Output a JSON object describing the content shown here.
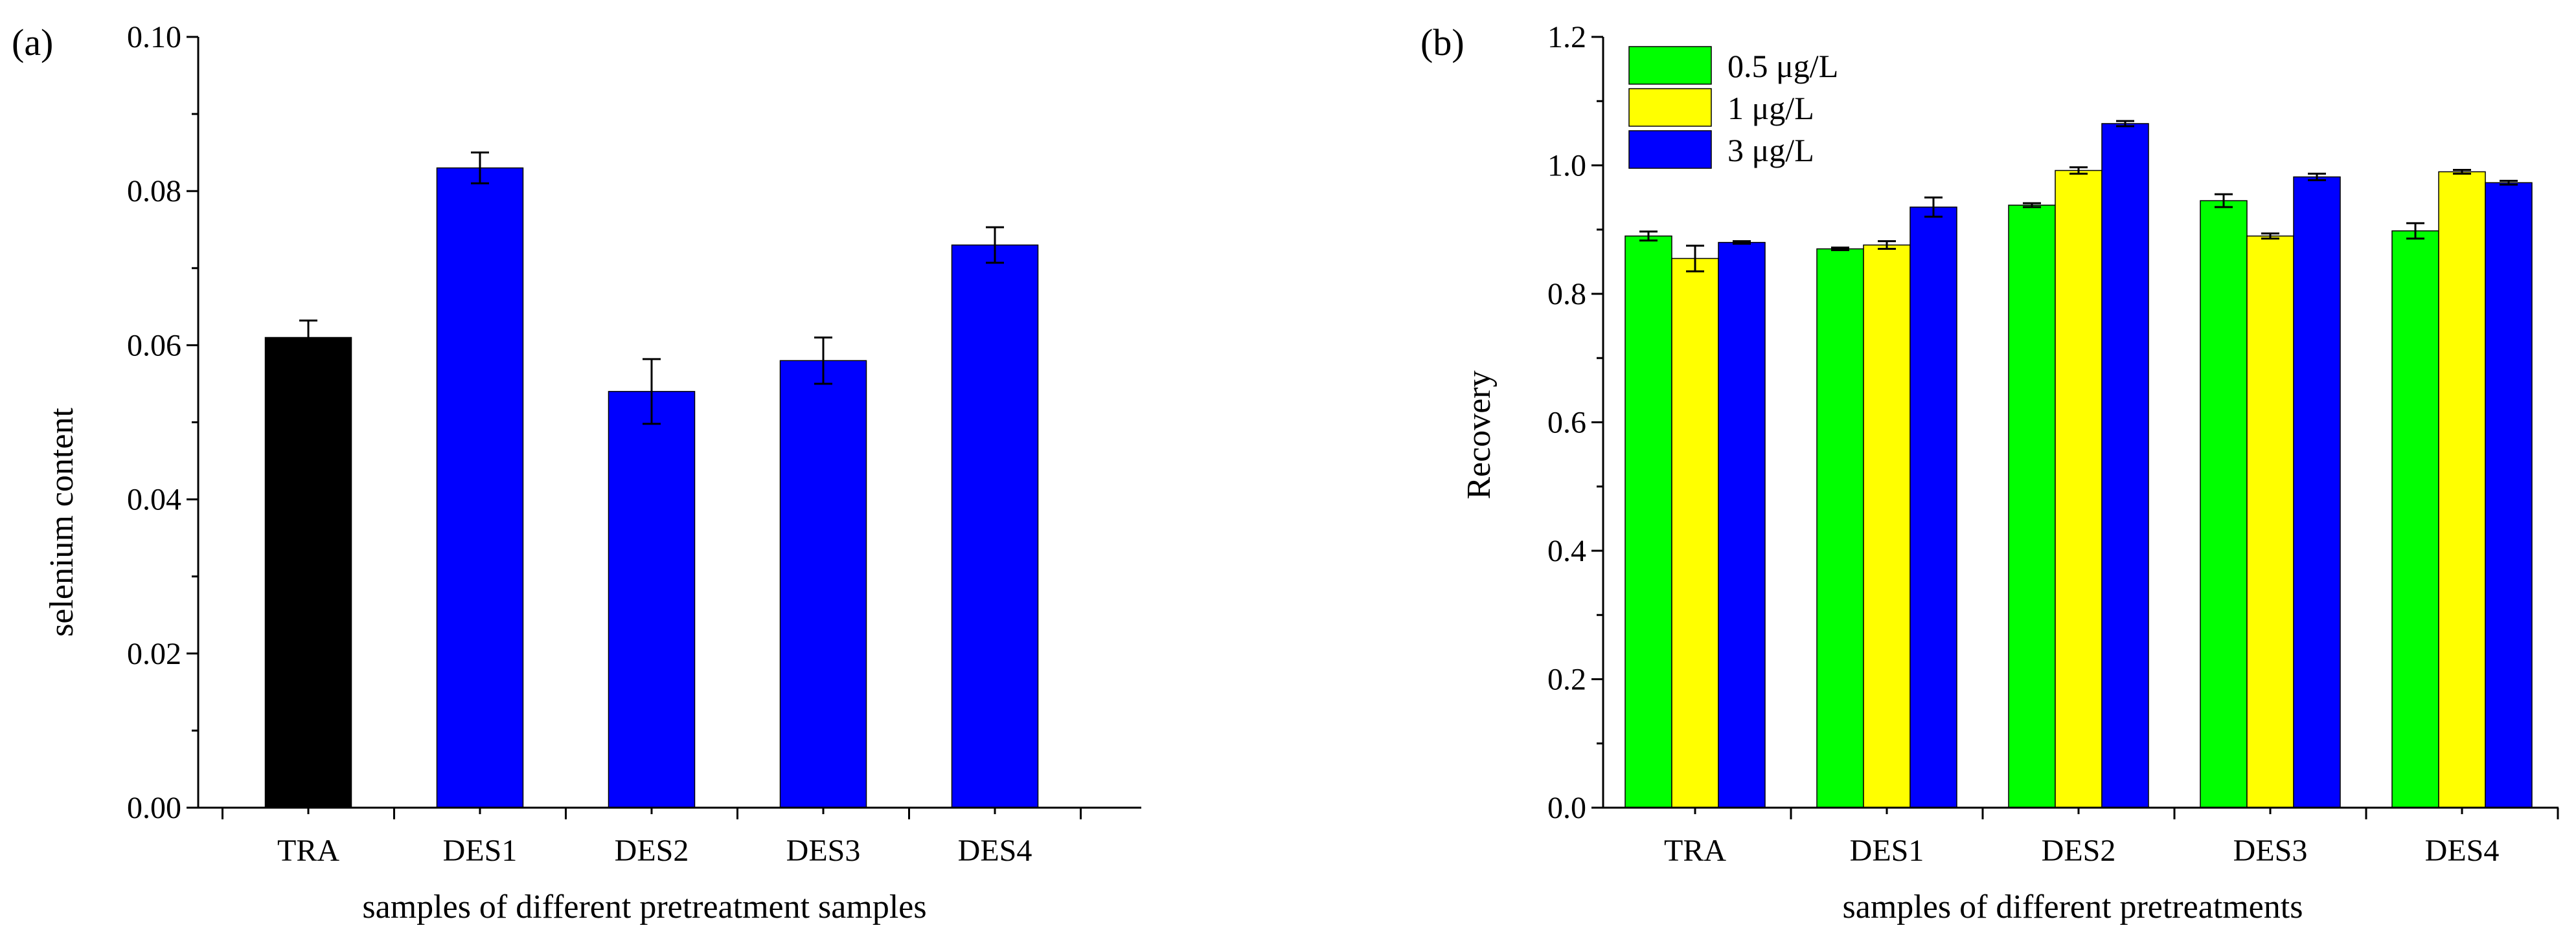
{
  "chart_data": [
    {
      "panel_label": "(a)",
      "type": "bar",
      "title": "",
      "xlabel": "samples of different pretreatment samples",
      "ylabel": "selenium content",
      "ylim": [
        0.0,
        0.1
      ],
      "yticks": [
        "0.00",
        "0.02",
        "0.04",
        "0.06",
        "0.08",
        "0.10"
      ],
      "categories": [
        "TRA",
        "DES1",
        "DES2",
        "DES3",
        "DES4"
      ],
      "values": [
        0.061,
        0.083,
        0.054,
        0.058,
        0.073
      ],
      "errors": [
        0.0022,
        0.002,
        0.0042,
        0.003,
        0.0023
      ],
      "bar_colors": [
        "#000000",
        "#0000ff",
        "#0000ff",
        "#0000ff",
        "#0000ff"
      ],
      "grid": false,
      "legend": null
    },
    {
      "panel_label": "(b)",
      "type": "bar",
      "title": "",
      "xlabel": "samples of different pretreatments",
      "ylabel": "Recovery",
      "ylim": [
        0.0,
        1.2
      ],
      "yticks": [
        "0.0",
        "0.2",
        "0.4",
        "0.6",
        "0.8",
        "1.0",
        "1.2"
      ],
      "categories": [
        "TRA",
        "DES1",
        "DES2",
        "DES3",
        "DES4"
      ],
      "series": [
        {
          "name": "0.5 μg/L",
          "color": "#00ff00",
          "values": [
            0.89,
            0.87,
            0.938,
            0.945,
            0.898
          ],
          "errors": [
            0.007,
            0.002,
            0.003,
            0.01,
            0.012
          ]
        },
        {
          "name": "1 μg/L",
          "color": "#ffff00",
          "values": [
            0.855,
            0.876,
            0.992,
            0.89,
            0.99
          ],
          "errors": [
            0.02,
            0.006,
            0.005,
            0.004,
            0.003
          ]
        },
        {
          "name": "3 μg/L",
          "color": "#0000ff",
          "values": [
            0.88,
            0.935,
            1.065,
            0.982,
            0.973
          ],
          "errors": [
            0.002,
            0.015,
            0.004,
            0.005,
            0.003
          ]
        }
      ],
      "grid": false,
      "legend": "top-left"
    }
  ]
}
